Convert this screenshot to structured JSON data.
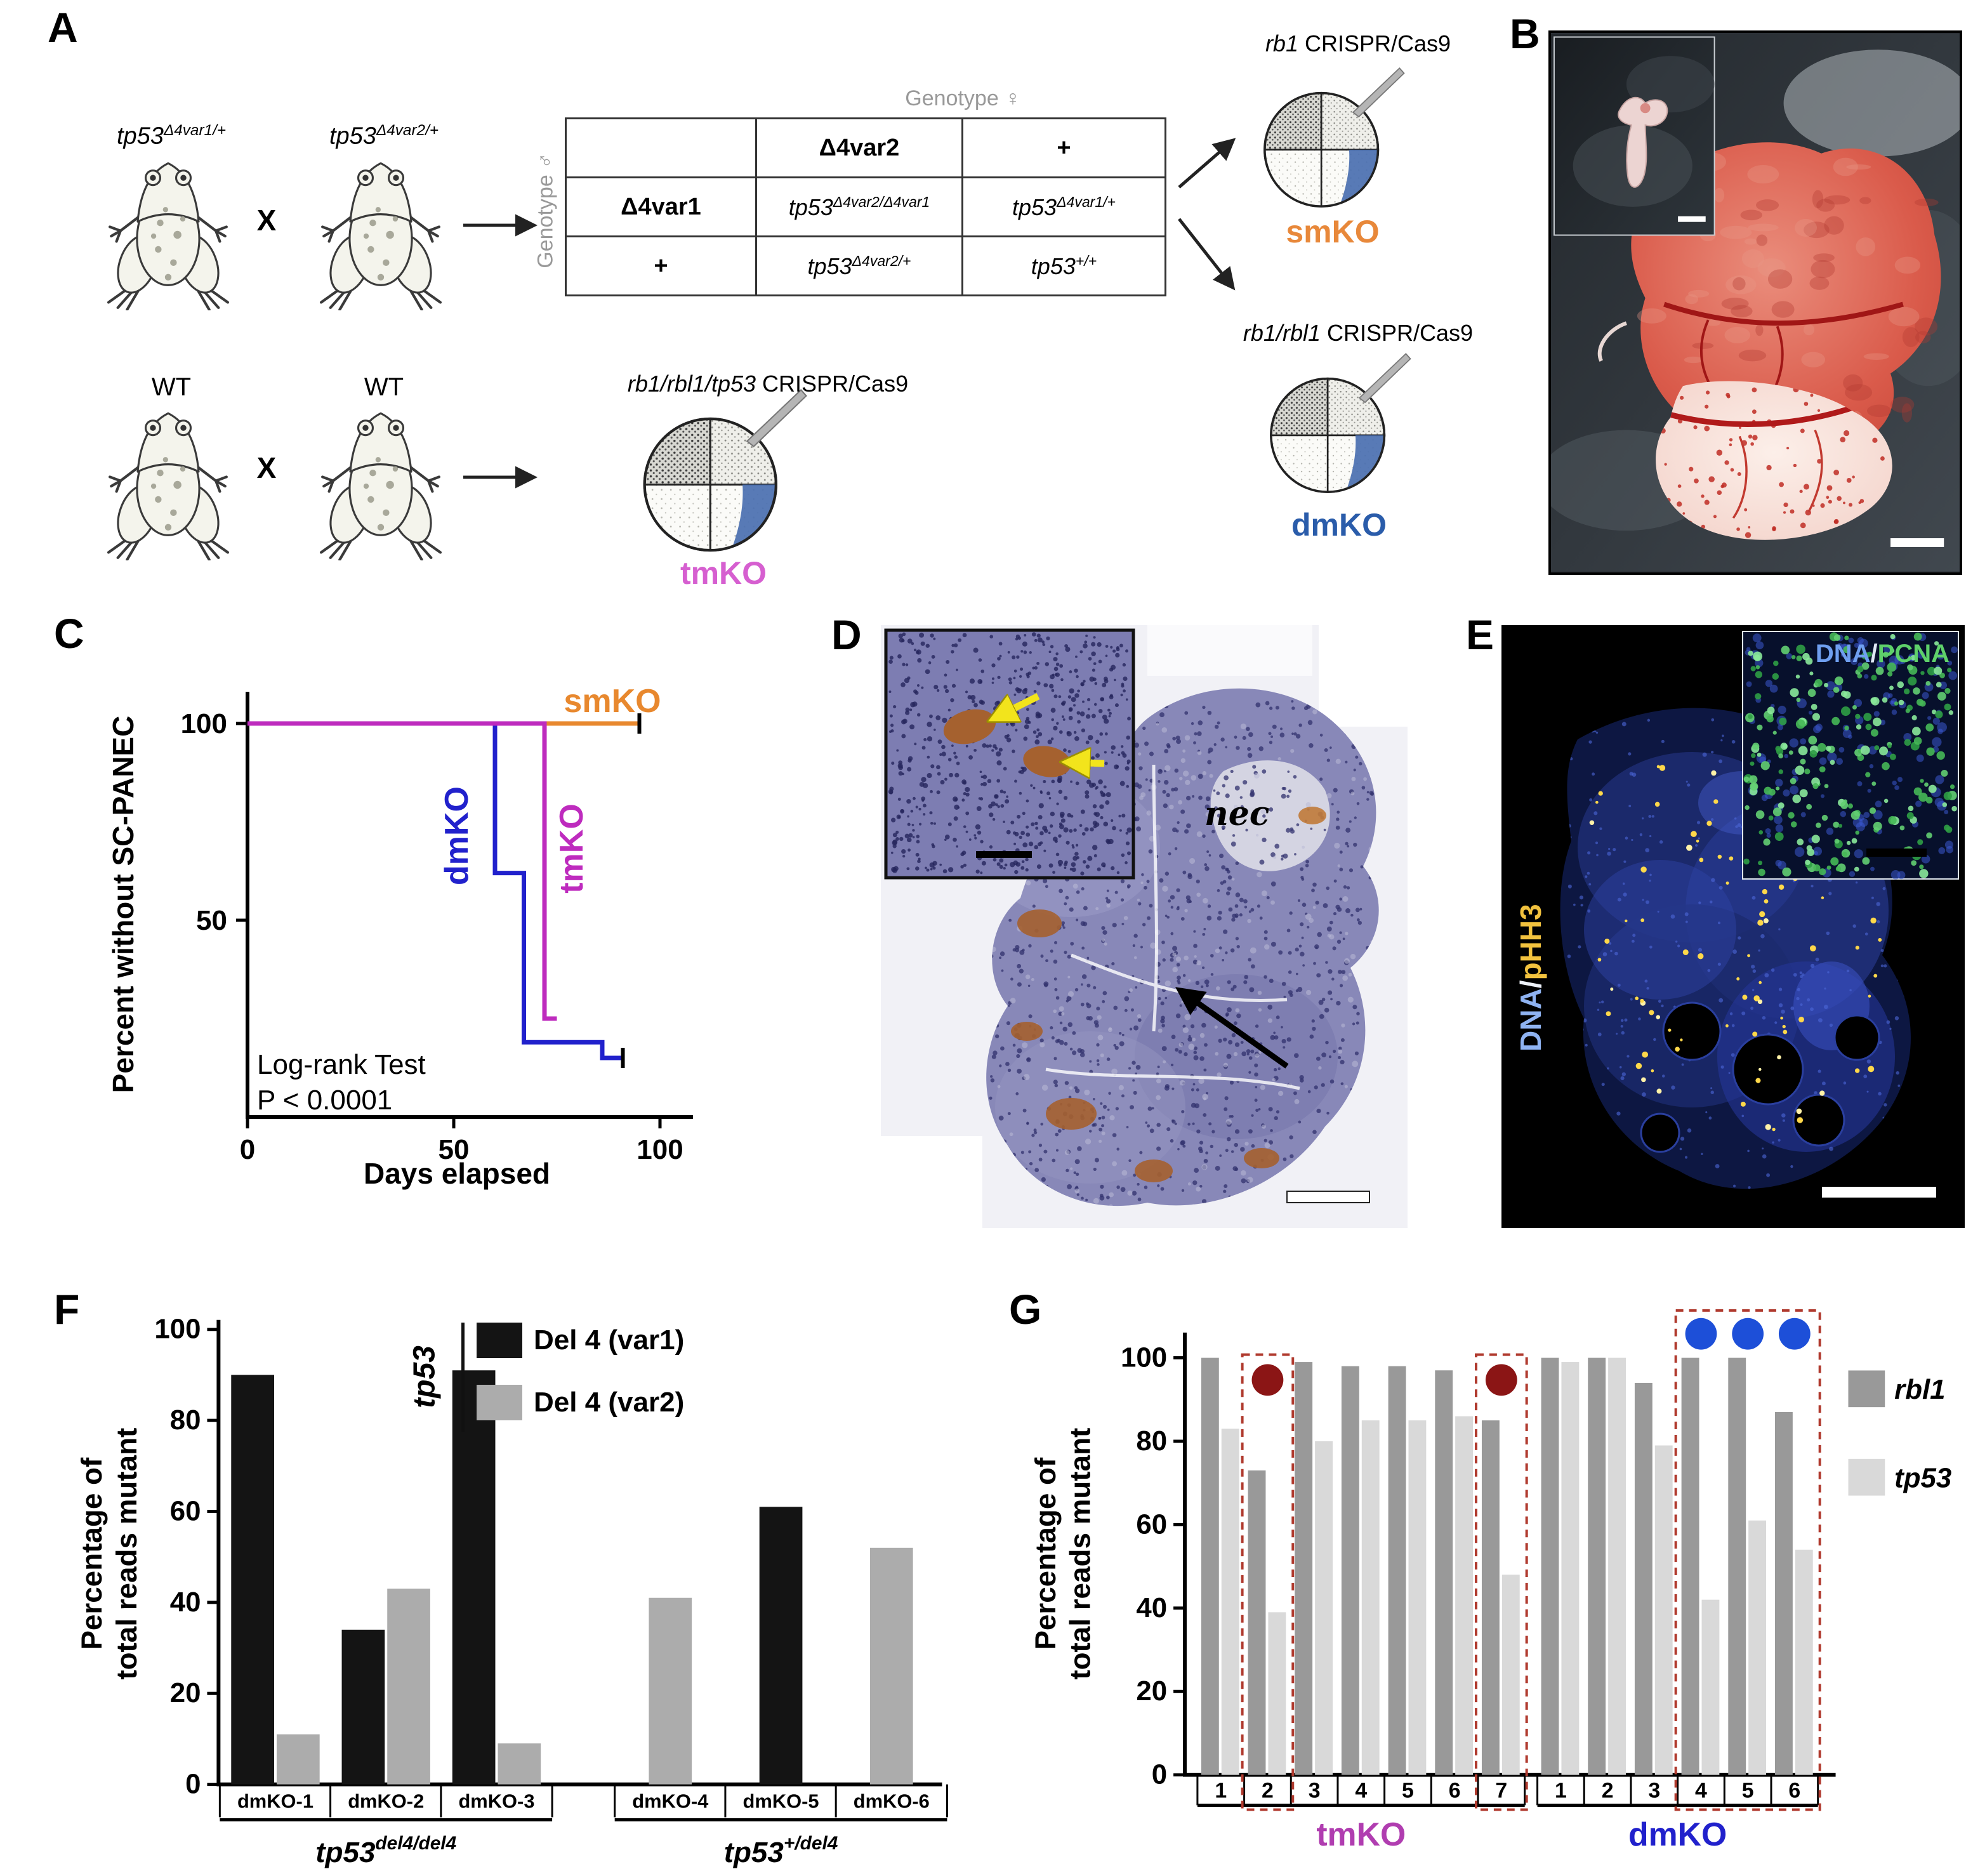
{
  "panel_a": {
    "letter": "A",
    "cross1": {
      "parent1": {
        "base": "tp53",
        "sup": "Δ4var1/+"
      },
      "parent2": {
        "base": "tp53",
        "sup": "Δ4var2/+"
      },
      "cross_symbol": "X"
    },
    "cross2": {
      "parent1": "WT",
      "parent2": "WT",
      "cross_symbol": "X"
    },
    "table": {
      "female_axis": "Genotype ♀",
      "male_axis": "Genotype ♂",
      "col_headers": [
        "Δ4var2",
        "+"
      ],
      "row_headers": [
        "Δ4var1",
        "+"
      ],
      "cells": [
        [
          {
            "base": "tp53",
            "sup": "Δ4var2/Δ4var1"
          },
          {
            "base": "tp53",
            "sup": "Δ4var1/+"
          }
        ],
        [
          {
            "base": "tp53",
            "sup": "Δ4var2/+"
          },
          {
            "base": "tp53",
            "sup": "+/+"
          }
        ]
      ]
    },
    "smko": {
      "crispr_genes": "rb1",
      "crispr_rest": " CRISPR/Cas9",
      "label": "smKO",
      "color": "#E8883A"
    },
    "dmko": {
      "crispr_genes": "rb1/rbl1",
      "crispr_rest": " CRISPR/Cas9",
      "label": "dmKO",
      "color": "#2A5CAA"
    },
    "tmko": {
      "crispr_genes": "rb1/rbl1/tp53",
      "crispr_rest": " CRISPR/Cas9",
      "label": "tmKO",
      "color": "#D65FD0"
    }
  },
  "panel_b": {
    "letter": "B"
  },
  "panel_c": {
    "letter": "C",
    "annotation_line1": "Log-rank Test",
    "annotation_line2": "P < 0.0001"
  },
  "panel_d": {
    "letter": "D",
    "nec_label": "nec"
  },
  "panel_e": {
    "letter": "E",
    "main_label": {
      "dna": "DNA",
      "sep": "/",
      "marker": "pHH3",
      "dna_color": "#8FB3F2",
      "sep_color": "#EEF2FA",
      "marker_color": "#F2C23E"
    },
    "inset_label": {
      "dna": "DNA",
      "sep": "/",
      "marker": "PCNA",
      "dna_color": "#6F9FF0",
      "sep_color": "#DFE8F5",
      "marker_color": "#5ED06A"
    }
  },
  "panel_f": {
    "letter": "F"
  },
  "panel_g": {
    "letter": "G"
  },
  "chart_data": [
    {
      "id": "survival_curve",
      "panel": "C",
      "type": "line",
      "xlabel": "Days elapsed",
      "ylabel": "Percent without SC-PANEC",
      "xlim": [
        0,
        108
      ],
      "ylim": [
        0,
        112
      ],
      "xticks": [
        0,
        50,
        100
      ],
      "yticks": [
        50,
        100
      ],
      "annotation": "Log-rank Test P < 0.0001",
      "series": [
        {
          "name": "smKO",
          "color": "#E8882E",
          "points": [
            [
              0,
              100
            ],
            [
              95,
              100
            ]
          ],
          "censors": [
            [
              95,
              100
            ]
          ]
        },
        {
          "name": "dmKO",
          "color": "#2121CC",
          "points": [
            [
              0,
              100
            ],
            [
              60,
              100
            ],
            [
              60,
              62
            ],
            [
              67,
              62
            ],
            [
              67,
              19
            ],
            [
              86,
              19
            ],
            [
              86,
              15
            ],
            [
              91,
              15
            ]
          ],
          "censors": [
            [
              91,
              15
            ]
          ]
        },
        {
          "name": "tmKO",
          "color": "#BE2BBE",
          "points": [
            [
              0,
              100
            ],
            [
              72,
              100
            ],
            [
              72,
              25
            ],
            [
              75,
              25
            ]
          ],
          "censors": []
        }
      ]
    },
    {
      "id": "tp53_variant_reads",
      "panel": "F",
      "type": "bar",
      "ylabel": "Percentage of total reads mutant",
      "ylim": [
        0,
        100
      ],
      "yticks": [
        0,
        20,
        40,
        60,
        80,
        100
      ],
      "legend_title": "tp53",
      "categories": [
        "dmKO-1",
        "dmKO-2",
        "dmKO-3",
        "dmKO-4",
        "dmKO-5",
        "dmKO-6"
      ],
      "series": [
        {
          "name": "Del 4 (var1)",
          "color": "#141414",
          "values": [
            90,
            34,
            91,
            0,
            61,
            0
          ]
        },
        {
          "name": "Del 4 (var2)",
          "color": "#ACACAC",
          "values": [
            11,
            43,
            9,
            41,
            0,
            52
          ]
        }
      ],
      "groups": [
        {
          "label_base": "tp53",
          "label_sup": "del4/del4",
          "span": [
            0,
            2
          ]
        },
        {
          "label_base": "tp53",
          "label_sup": "+/del4",
          "span": [
            3,
            5
          ]
        }
      ]
    },
    {
      "id": "crispr_mutation_reads",
      "panel": "G",
      "type": "bar",
      "ylabel": "Percentage of total reads mutant",
      "ylim": [
        0,
        100
      ],
      "yticks": [
        0,
        20,
        40,
        60,
        80,
        100
      ],
      "categories": [
        "1",
        "2",
        "3",
        "4",
        "5",
        "6",
        "7",
        "1",
        "2",
        "3",
        "4",
        "5",
        "6"
      ],
      "series": [
        {
          "name": "rbl1",
          "color": "#999999",
          "values": [
            100,
            73,
            99,
            98,
            98,
            97,
            85,
            100,
            100,
            94,
            100,
            100,
            87
          ]
        },
        {
          "name": "tp53",
          "color": "#D9D9D9",
          "values": [
            83,
            39,
            80,
            85,
            85,
            86,
            48,
            99,
            100,
            79,
            42,
            61,
            54
          ]
        }
      ],
      "groups": [
        {
          "label": "tmKO",
          "color": "#B03DB0",
          "span": [
            0,
            6
          ]
        },
        {
          "label": "dmKO",
          "color": "#2121CC",
          "span": [
            7,
            12
          ]
        }
      ],
      "highlights": [
        {
          "span": [
            1,
            1
          ],
          "box_color": "#B03A2E",
          "markers": [
            {
              "color": "#8B1515"
            }
          ]
        },
        {
          "span": [
            6,
            6
          ],
          "box_color": "#B03A2E",
          "markers": [
            {
              "color": "#8B1515"
            }
          ]
        },
        {
          "span": [
            10,
            12
          ],
          "box_color": "#B03A2E",
          "markers": [
            {
              "color": "#1D4FD8"
            },
            {
              "color": "#1D4FD8"
            },
            {
              "color": "#1D4FD8"
            }
          ]
        }
      ]
    }
  ]
}
